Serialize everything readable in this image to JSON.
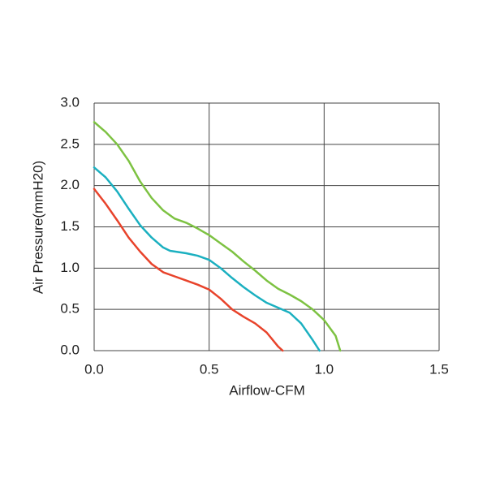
{
  "chart_data": {
    "type": "line",
    "x_label": "Airflow-CFM",
    "y_label": "Air Pressure(mmH20)",
    "xlim": [
      0,
      1.5
    ],
    "ylim": [
      0,
      3.0
    ],
    "xticks": [
      {
        "value": 0,
        "label": "0.0"
      },
      0.5,
      {
        "value": 1,
        "label": "1.0"
      },
      1.5
    ],
    "yticks": [
      {
        "value": 0,
        "label": "0.0"
      },
      0.5,
      {
        "value": 1,
        "label": "1.0"
      },
      1.5,
      {
        "value": 2,
        "label": "2.0"
      },
      2.5,
      {
        "value": 3,
        "label": "3.0"
      }
    ],
    "grid": true,
    "series": [
      {
        "color": "#7dc242",
        "x": [
          0,
          0.05,
          0.1,
          0.15,
          0.2,
          0.25,
          0.3,
          0.35,
          0.4,
          0.45,
          0.5,
          0.55,
          0.6,
          0.65,
          0.7,
          0.75,
          0.8,
          0.85,
          0.9,
          0.95,
          1.0,
          1.05,
          1.07
        ],
        "values": [
          2.77,
          2.65,
          2.5,
          2.3,
          2.05,
          1.85,
          1.7,
          1.6,
          1.55,
          1.48,
          1.4,
          1.3,
          1.2,
          1.08,
          0.97,
          0.85,
          0.75,
          0.68,
          0.6,
          0.5,
          0.37,
          0.18,
          0
        ]
      },
      {
        "color": "#1bb0c0",
        "x": [
          0,
          0.05,
          0.1,
          0.15,
          0.2,
          0.25,
          0.3,
          0.33,
          0.4,
          0.45,
          0.5,
          0.55,
          0.6,
          0.65,
          0.7,
          0.75,
          0.8,
          0.85,
          0.9,
          0.95,
          0.98
        ],
        "values": [
          2.22,
          2.1,
          1.93,
          1.72,
          1.52,
          1.37,
          1.25,
          1.21,
          1.18,
          1.15,
          1.1,
          1.0,
          0.88,
          0.77,
          0.67,
          0.58,
          0.52,
          0.46,
          0.33,
          0.13,
          0
        ]
      },
      {
        "color": "#e8432b",
        "x": [
          0,
          0.05,
          0.1,
          0.15,
          0.2,
          0.25,
          0.3,
          0.35,
          0.4,
          0.45,
          0.5,
          0.55,
          0.6,
          0.65,
          0.7,
          0.75,
          0.8,
          0.82
        ],
        "values": [
          1.96,
          1.78,
          1.58,
          1.37,
          1.2,
          1.05,
          0.95,
          0.9,
          0.85,
          0.8,
          0.74,
          0.63,
          0.5,
          0.41,
          0.33,
          0.22,
          0.05,
          0
        ]
      }
    ]
  }
}
